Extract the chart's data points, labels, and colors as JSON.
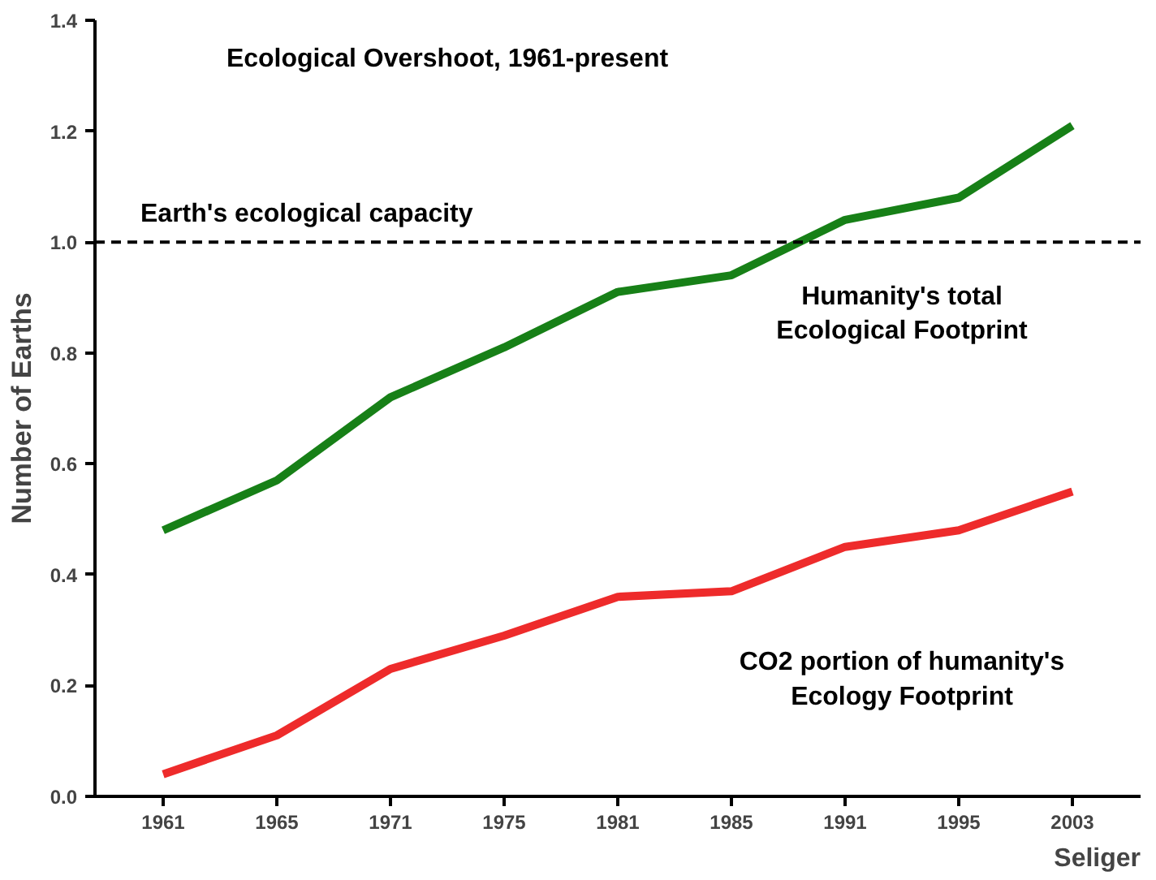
{
  "chart_data": {
    "type": "line",
    "title": "Ecological Overshoot, 1961-present",
    "ylabel": "Number of Earths",
    "categories": [
      "1961",
      "1965",
      "1971",
      "1975",
      "1981",
      "1985",
      "1991",
      "1995",
      "2003"
    ],
    "series": [
      {
        "name": "Humanity's total Ecological Footprint",
        "color": "#178017",
        "values": [
          0.48,
          0.57,
          0.72,
          0.81,
          0.91,
          0.94,
          1.04,
          1.08,
          1.21
        ]
      },
      {
        "name": "CO2 portion of humanity's Ecology Footprint",
        "color": "#ee2b2b",
        "values": [
          0.04,
          0.11,
          0.23,
          0.29,
          0.36,
          0.37,
          0.45,
          0.48,
          0.55
        ]
      }
    ],
    "ylim": [
      0,
      1.4
    ],
    "yticks": [
      {
        "value": 0,
        "label": "0.0"
      },
      {
        "value": 0.2,
        "label": "0.2"
      },
      {
        "value": 0.4,
        "label": "0.4"
      },
      {
        "value": 0.6,
        "label": "0.6"
      },
      {
        "value": 0.8,
        "label": "0.8"
      },
      {
        "value": 1.0,
        "label": "1.0"
      },
      {
        "value": 1.2,
        "label": "1.2"
      },
      {
        "value": 1.4,
        "label": "1.4"
      }
    ],
    "ref_lines": [
      {
        "axis": "y",
        "value": 1.0,
        "label": "Earth's ecological capacity",
        "color": "#000000",
        "line_style": "dashed"
      }
    ],
    "annotations": [
      "Seliger"
    ],
    "grid": false,
    "legend": false,
    "marker": "none",
    "line_style": "solid"
  }
}
